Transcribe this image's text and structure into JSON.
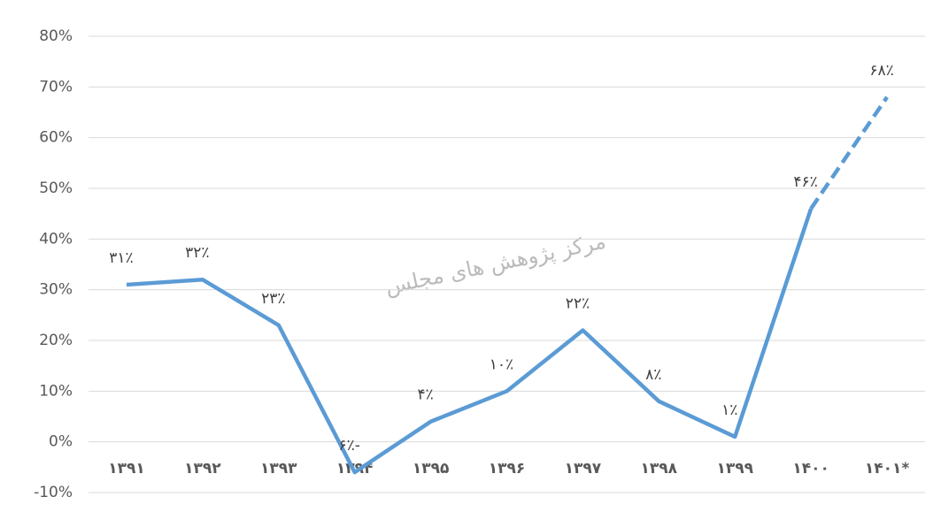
{
  "chart_data": {
    "type": "line",
    "categories": [
      "۱۳۹۱",
      "۱۳۹۲",
      "۱۳۹۳",
      "۱۳۹۴",
      "۱۳۹۵",
      "۱۳۹۶",
      "۱۳۹۷",
      "۱۳۹۸",
      "۱۳۹۹",
      "۱۴۰۰",
      "۱۴۰۱*"
    ],
    "series": [
      {
        "color": "#5b9bd5",
        "dashed": false,
        "values": [
          31,
          32,
          23,
          -6,
          4,
          10,
          22,
          8,
          1,
          46,
          null
        ],
        "value_labels": [
          "۳۱٪",
          "۳۲٪",
          "۲۳٪",
          "۶٪-",
          "۴٪",
          "۱۰٪",
          "۲۲٪",
          "۸٪",
          "۱٪",
          "۴۶٪",
          null
        ]
      },
      {
        "color": "#5b9bd5",
        "dashed": true,
        "values": [
          null,
          null,
          null,
          null,
          null,
          null,
          null,
          null,
          null,
          46,
          68
        ],
        "value_labels": [
          null,
          null,
          null,
          null,
          null,
          null,
          null,
          null,
          null,
          null,
          "۶۸٪"
        ]
      }
    ],
    "ylim": [
      -10,
      80
    ],
    "yticks": [
      {
        "value": -10,
        "label": "-10%"
      },
      {
        "value": 0,
        "label": "0%"
      },
      {
        "value": 10,
        "label": "10%"
      },
      {
        "value": 20,
        "label": "20%"
      },
      {
        "value": 30,
        "label": "30%"
      },
      {
        "value": 40,
        "label": "40%"
      },
      {
        "value": 50,
        "label": "50%"
      },
      {
        "value": 60,
        "label": "60%"
      },
      {
        "value": 70,
        "label": "70%"
      },
      {
        "value": 80,
        "label": "80%"
      }
    ],
    "grid": true,
    "watermark": "مرکز پژوهش های مجلس"
  }
}
